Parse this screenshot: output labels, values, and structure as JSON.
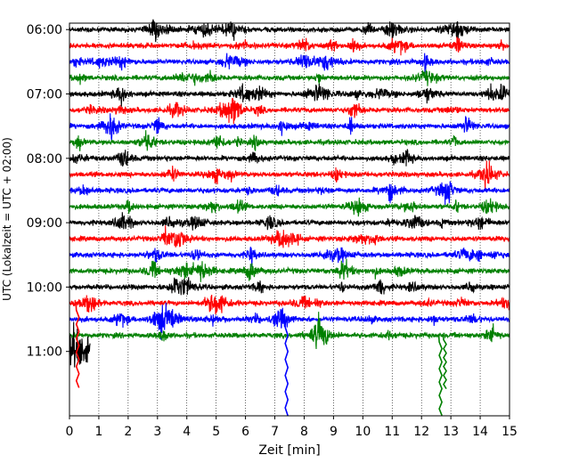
{
  "chart_data": {
    "type": "line",
    "title": "",
    "xlabel": "Zeit  [min]",
    "ylabel": "UTC (Lokalzeit = UTC + 02:00)",
    "xlim": [
      0,
      15
    ],
    "x_ticks": [
      "0",
      "1",
      "2",
      "3",
      "4",
      "5",
      "6",
      "7",
      "8",
      "9",
      "10",
      "11",
      "12",
      "13",
      "14",
      "15"
    ],
    "y_ticks": [
      {
        "time_min": 360,
        "label": "06:00"
      },
      {
        "time_min": 420,
        "label": "07:00"
      },
      {
        "time_min": 480,
        "label": "08:00"
      },
      {
        "time_min": 540,
        "label": "09:00"
      },
      {
        "time_min": 600,
        "label": "10:00"
      },
      {
        "time_min": 660,
        "label": "11:00"
      }
    ],
    "ylim_time_min": [
      354,
      720
    ],
    "trace_interval_min": 15,
    "grid": "vertical dotted",
    "trace_colors": [
      "#000000",
      "#ff0000",
      "#0000ff",
      "#008000"
    ],
    "traces": [
      {
        "start_min": 360,
        "color": "#000000",
        "end_x": 15
      },
      {
        "start_min": 375,
        "color": "#ff0000",
        "end_x": 15
      },
      {
        "start_min": 390,
        "color": "#0000ff",
        "end_x": 15
      },
      {
        "start_min": 405,
        "color": "#008000",
        "end_x": 15
      },
      {
        "start_min": 420,
        "color": "#000000",
        "end_x": 15
      },
      {
        "start_min": 435,
        "color": "#ff0000",
        "end_x": 15
      },
      {
        "start_min": 450,
        "color": "#0000ff",
        "end_x": 15
      },
      {
        "start_min": 465,
        "color": "#008000",
        "end_x": 15
      },
      {
        "start_min": 480,
        "color": "#000000",
        "end_x": 15
      },
      {
        "start_min": 495,
        "color": "#ff0000",
        "end_x": 15
      },
      {
        "start_min": 510,
        "color": "#0000ff",
        "end_x": 15
      },
      {
        "start_min": 525,
        "color": "#008000",
        "end_x": 15
      },
      {
        "start_min": 540,
        "color": "#000000",
        "end_x": 15
      },
      {
        "start_min": 555,
        "color": "#ff0000",
        "end_x": 15
      },
      {
        "start_min": 570,
        "color": "#0000ff",
        "end_x": 15
      },
      {
        "start_min": 585,
        "color": "#008000",
        "end_x": 15
      },
      {
        "start_min": 600,
        "color": "#000000",
        "end_x": 15
      },
      {
        "start_min": 615,
        "color": "#ff0000",
        "end_x": 15
      },
      {
        "start_min": 630,
        "color": "#0000ff",
        "end_x": 15
      },
      {
        "start_min": 645,
        "color": "#008000",
        "end_x": 15
      },
      {
        "start_min": 660,
        "color": "#000000",
        "end_x": 0.7
      }
    ]
  }
}
